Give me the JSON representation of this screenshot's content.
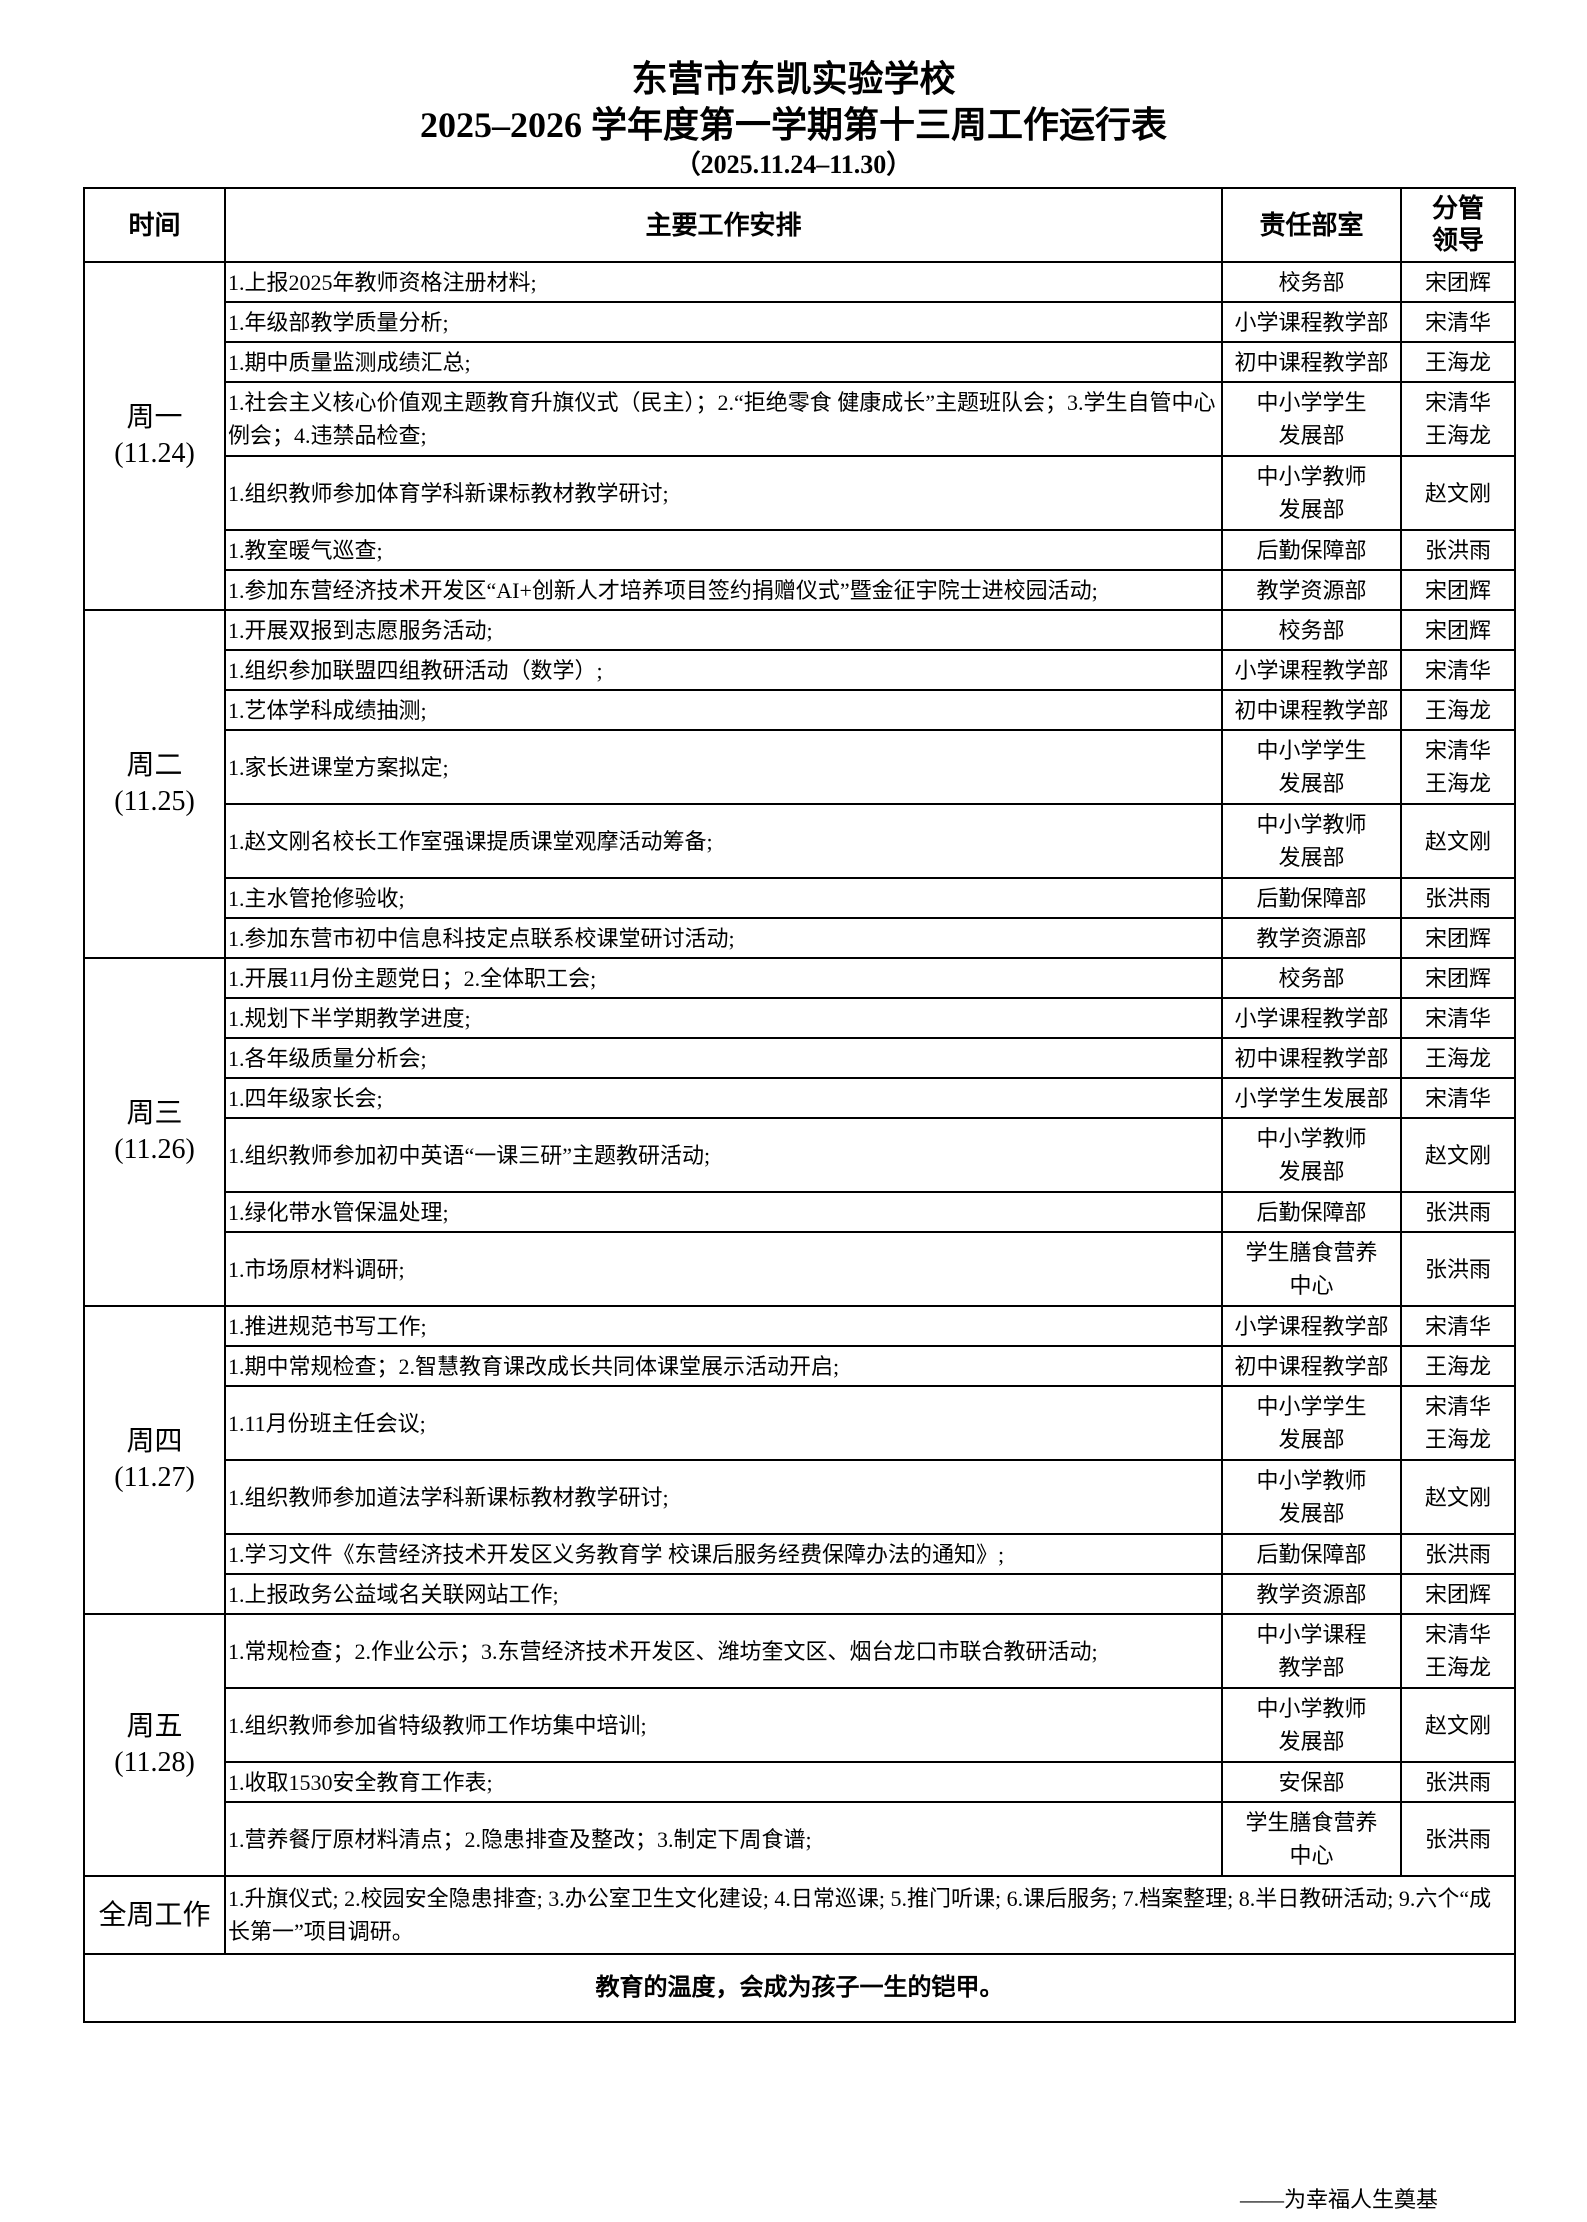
{
  "header": {
    "school": "东营市东凯实验学校",
    "title": "2025–2026 学年度第一学期第十三周工作运行表",
    "date_range": "（2025.11.24–11.30）"
  },
  "columns": {
    "time": "时间",
    "task": "主要工作安排",
    "dept": "责任部室",
    "leader": [
      "分管",
      "领导"
    ]
  },
  "days": [
    {
      "label": [
        "周一",
        "(11.24)"
      ],
      "rows": [
        {
          "task": "1.上报2025年教师资格注册材料;",
          "dept": [
            "校务部"
          ],
          "leader": [
            "宋团辉"
          ]
        },
        {
          "task": "1.年级部教学质量分析;",
          "dept": [
            "小学课程教学部"
          ],
          "leader": [
            "宋清华"
          ]
        },
        {
          "task": "1.期中质量监测成绩汇总;",
          "dept": [
            "初中课程教学部"
          ],
          "leader": [
            "王海龙"
          ]
        },
        {
          "task": "1.社会主义核心价值观主题教育升旗仪式（民主）；2.“拒绝零食 健康成长”主题班队会；3.学生自管中心例会；4.违禁品检查;",
          "dept": [
            "中小学学生",
            "发展部"
          ],
          "leader": [
            "宋清华",
            "王海龙"
          ]
        },
        {
          "task": "1.组织教师参加体育学科新课标教材教学研讨;",
          "dept": [
            "中小学教师",
            "发展部"
          ],
          "leader": [
            "赵文刚"
          ]
        },
        {
          "task": "1.教室暖气巡查;",
          "dept": [
            "后勤保障部"
          ],
          "leader": [
            "张洪雨"
          ]
        },
        {
          "task": "1.参加东营经济技术开发区“AI+创新人才培养项目签约捐赠仪式”暨金征宇院士进校园活动;",
          "dept": [
            "教学资源部"
          ],
          "leader": [
            "宋团辉"
          ]
        }
      ]
    },
    {
      "label": [
        "周二",
        "(11.25)"
      ],
      "rows": [
        {
          "task": "1.开展双报到志愿服务活动;",
          "dept": [
            "校务部"
          ],
          "leader": [
            "宋团辉"
          ]
        },
        {
          "task": "1.组织参加联盟四组教研活动（数学）;",
          "dept": [
            "小学课程教学部"
          ],
          "leader": [
            "宋清华"
          ]
        },
        {
          "task": "1.艺体学科成绩抽测;",
          "dept": [
            "初中课程教学部"
          ],
          "leader": [
            "王海龙"
          ]
        },
        {
          "task": "1.家长进课堂方案拟定;",
          "dept": [
            "中小学学生",
            "发展部"
          ],
          "leader": [
            "宋清华",
            "王海龙"
          ]
        },
        {
          "task": "1.赵文刚名校长工作室强课提质课堂观摩活动筹备;",
          "dept": [
            "中小学教师",
            "发展部"
          ],
          "leader": [
            "赵文刚"
          ]
        },
        {
          "task": "1.主水管抢修验收;",
          "dept": [
            "后勤保障部"
          ],
          "leader": [
            "张洪雨"
          ]
        },
        {
          "task": "1.参加东营市初中信息科技定点联系校课堂研讨活动;",
          "dept": [
            "教学资源部"
          ],
          "leader": [
            "宋团辉"
          ]
        }
      ]
    },
    {
      "label": [
        "周三",
        "(11.26)"
      ],
      "rows": [
        {
          "task": "1.开展11月份主题党日；2.全体职工会;",
          "dept": [
            "校务部"
          ],
          "leader": [
            "宋团辉"
          ]
        },
        {
          "task": "1.规划下半学期教学进度;",
          "dept": [
            "小学课程教学部"
          ],
          "leader": [
            "宋清华"
          ]
        },
        {
          "task": "1.各年级质量分析会;",
          "dept": [
            "初中课程教学部"
          ],
          "leader": [
            "王海龙"
          ]
        },
        {
          "task": "1.四年级家长会;",
          "dept": [
            "小学学生发展部"
          ],
          "leader": [
            "宋清华"
          ]
        },
        {
          "task": "1.组织教师参加初中英语“一课三研”主题教研活动;",
          "dept": [
            "中小学教师",
            "发展部"
          ],
          "leader": [
            "赵文刚"
          ]
        },
        {
          "task": "1.绿化带水管保温处理;",
          "dept": [
            "后勤保障部"
          ],
          "leader": [
            "张洪雨"
          ]
        },
        {
          "task": "1.市场原材料调研;",
          "dept": [
            "学生膳食营养",
            "中心"
          ],
          "leader": [
            "张洪雨"
          ]
        }
      ]
    },
    {
      "label": [
        "周四",
        "(11.27)"
      ],
      "rows": [
        {
          "task": "1.推进规范书写工作;",
          "dept": [
            "小学课程教学部"
          ],
          "leader": [
            "宋清华"
          ]
        },
        {
          "task": "1.期中常规检查；2.智慧教育课改成长共同体课堂展示活动开启;",
          "dept": [
            "初中课程教学部"
          ],
          "leader": [
            "王海龙"
          ]
        },
        {
          "task": "1.11月份班主任会议;",
          "dept": [
            "中小学学生",
            "发展部"
          ],
          "leader": [
            "宋清华",
            "王海龙"
          ]
        },
        {
          "task": "1.组织教师参加道法学科新课标教材教学研讨;",
          "dept": [
            "中小学教师",
            "发展部"
          ],
          "leader": [
            "赵文刚"
          ]
        },
        {
          "task": "1.学习文件《东营经济技术开发区义务教育学 校课后服务经费保障办法的通知》;",
          "dept": [
            "后勤保障部"
          ],
          "leader": [
            "张洪雨"
          ]
        },
        {
          "task": "1.上报政务公益域名关联网站工作;",
          "dept": [
            "教学资源部"
          ],
          "leader": [
            "宋团辉"
          ]
        }
      ]
    },
    {
      "label": [
        "周五",
        "(11.28)"
      ],
      "rows": [
        {
          "task": "1.常规检查；2.作业公示；3.东营经济技术开发区、潍坊奎文区、烟台龙口市联合教研活动;",
          "dept": [
            "中小学课程",
            "教学部"
          ],
          "leader": [
            "宋清华",
            "王海龙"
          ]
        },
        {
          "task": "1.组织教师参加省特级教师工作坊集中培训;",
          "dept": [
            "中小学教师",
            "发展部"
          ],
          "leader": [
            "赵文刚"
          ]
        },
        {
          "task": "1.收取1530安全教育工作表;",
          "dept": [
            "安保部"
          ],
          "leader": [
            "张洪雨"
          ]
        },
        {
          "task": "1.营养餐厅原材料清点；2.隐患排查及整改；3.制定下周食谱;",
          "dept": [
            "学生膳食营养",
            "中心"
          ],
          "leader": [
            "张洪雨"
          ]
        }
      ]
    }
  ],
  "week_work": {
    "label": "全周工作",
    "text": "1.升旗仪式; 2.校园安全隐患排查; 3.办公室卫生文化建设; 4.日常巡课; 5.推门听课; 6.课后服务; 7.档案整理; 8.半日教研活动; 9.六个“成长第一”项目调研。"
  },
  "motto": "教育的温度，会成为孩子一生的铠甲。",
  "footer": "——为幸福人生奠基"
}
